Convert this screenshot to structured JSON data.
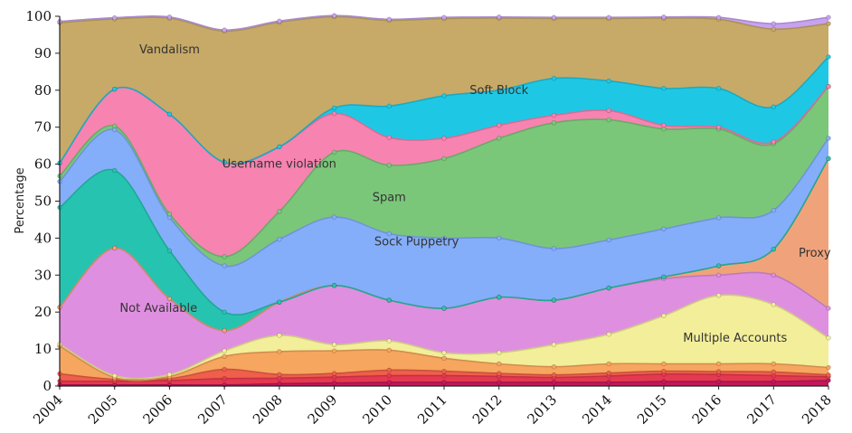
{
  "chart_data": {
    "type": "area",
    "title": "",
    "xlabel": "",
    "ylabel": "Percentage",
    "ylim": [
      0,
      100
    ],
    "yticks": [
      0,
      10,
      20,
      30,
      40,
      50,
      60,
      70,
      80,
      90,
      100
    ],
    "x": [
      "2004",
      "2005",
      "2006",
      "2007",
      "2008",
      "2009",
      "2010",
      "2011",
      "2012",
      "2013",
      "2014",
      "2015",
      "2016",
      "2017",
      "2018"
    ],
    "grid": false,
    "legend": "none",
    "series": [
      {
        "name": "",
        "color": "#c2185b",
        "values": [
          0.3,
          0.3,
          0.3,
          0.3,
          0.6,
          0.8,
          1.0,
          1.0,
          1.0,
          1.0,
          1.0,
          1.2,
          1.2,
          1.2,
          1.5
        ]
      },
      {
        "name": "",
        "color": "#e53950",
        "values": [
          1.0,
          1.0,
          1.2,
          1.7,
          1.5,
          1.6,
          1.8,
          1.8,
          1.6,
          1.3,
          1.7,
          2.0,
          1.9,
          1.6,
          1.0
        ]
      },
      {
        "name": "",
        "color": "#ef5f4a",
        "values": [
          2.0,
          0.5,
          0.5,
          2.5,
          1.0,
          1.0,
          1.5,
          1.2,
          0.8,
          0.7,
          0.8,
          0.8,
          0.8,
          1.0,
          0.5
        ]
      },
      {
        "name": "",
        "color": "#f6a65e",
        "values": [
          7.5,
          0.5,
          0.6,
          3.5,
          6.2,
          6.1,
          5.4,
          3.5,
          2.6,
          2.2,
          2.5,
          2.0,
          2.1,
          2.2,
          2.0
        ]
      },
      {
        "name": "Multiple Accounts",
        "color": "#f2ee9a",
        "values": [
          0.5,
          0.5,
          0.5,
          1.5,
          4.4,
          1.7,
          2.5,
          1.5,
          3.0,
          6.0,
          8.0,
          13.0,
          18.5,
          16.0,
          8.0
        ]
      },
      {
        "name": "Not Available",
        "color": "#df8fe0",
        "values": [
          10.0,
          34.5,
          20.5,
          5.5,
          9.0,
          16.0,
          11.0,
          12.0,
          15.0,
          12.0,
          12.5,
          10.0,
          5.5,
          8.0,
          8.0
        ]
      },
      {
        "name": "Proxy",
        "color": "#f0a37a",
        "values": [
          0,
          0,
          0,
          0,
          0,
          0,
          0,
          0,
          0,
          0,
          0,
          0.5,
          2.5,
          7.0,
          40.5
        ]
      },
      {
        "name": "",
        "color": "#26c4b0",
        "values": [
          27.0,
          21.0,
          13.0,
          5.0,
          0,
          0,
          0,
          0,
          0,
          0,
          0,
          0,
          0,
          0,
          0
        ]
      },
      {
        "name": "Sock Puppetry",
        "color": "#84aefa",
        "values": [
          7.0,
          11.0,
          9.0,
          12.5,
          17.0,
          18.5,
          18.0,
          19.0,
          16.0,
          14.0,
          13.0,
          13.0,
          13.0,
          10.5,
          5.5
        ]
      },
      {
        "name": "Spam",
        "color": "#7bc77a",
        "values": [
          1.5,
          1.0,
          0.9,
          2.5,
          7.5,
          17.5,
          18.5,
          21.5,
          27.0,
          34.0,
          32.5,
          27.0,
          24.0,
          18.0,
          14.0
        ]
      },
      {
        "name": "Username violation",
        "color": "#f783b0",
        "values": [
          3.5,
          10.0,
          27.0,
          25.5,
          17.5,
          10.5,
          7.5,
          5.5,
          3.5,
          2.0,
          2.5,
          1.0,
          0.5,
          0.5,
          0
        ]
      },
      {
        "name": "Soft Block",
        "color": "#1ec8e4",
        "values": [
          0,
          0,
          0,
          0,
          0,
          1.5,
          8.5,
          11.5,
          9.5,
          10.0,
          8.0,
          10.0,
          10.5,
          9.5,
          8.0
        ]
      },
      {
        "name": "Vandalism",
        "color": "#c7aa68",
        "values": [
          38.0,
          19.0,
          26.0,
          35.5,
          33.7,
          24.7,
          23.2,
          20.9,
          19.5,
          16.2,
          16.9,
          19.0,
          18.7,
          21.0,
          9.0
        ]
      },
      {
        "name": "",
        "color": "#c8a2f0",
        "values": [
          0.3,
          0.3,
          0.3,
          0.3,
          0.3,
          0.3,
          0.3,
          0.3,
          0.3,
          0.3,
          0.3,
          0.3,
          0.5,
          1.5,
          1.7
        ]
      }
    ],
    "annotations": [
      {
        "text": "Vandalism",
        "x": "2006",
        "y": 90
      },
      {
        "text": "Soft Block",
        "x": "2012",
        "y": 79
      },
      {
        "text": "Username violation",
        "x": "2008",
        "y": 59
      },
      {
        "text": "Spam",
        "x": "2010",
        "y": 50
      },
      {
        "text": "Sock Puppetry",
        "x": "2010.5",
        "y": 38
      },
      {
        "text": "Proxy",
        "x": "2017.75",
        "y": 35
      },
      {
        "text": "Not Available",
        "x": "2005.8",
        "y": 20
      },
      {
        "text": "Multiple Accounts",
        "x": "2016.3",
        "y": 12
      }
    ]
  }
}
